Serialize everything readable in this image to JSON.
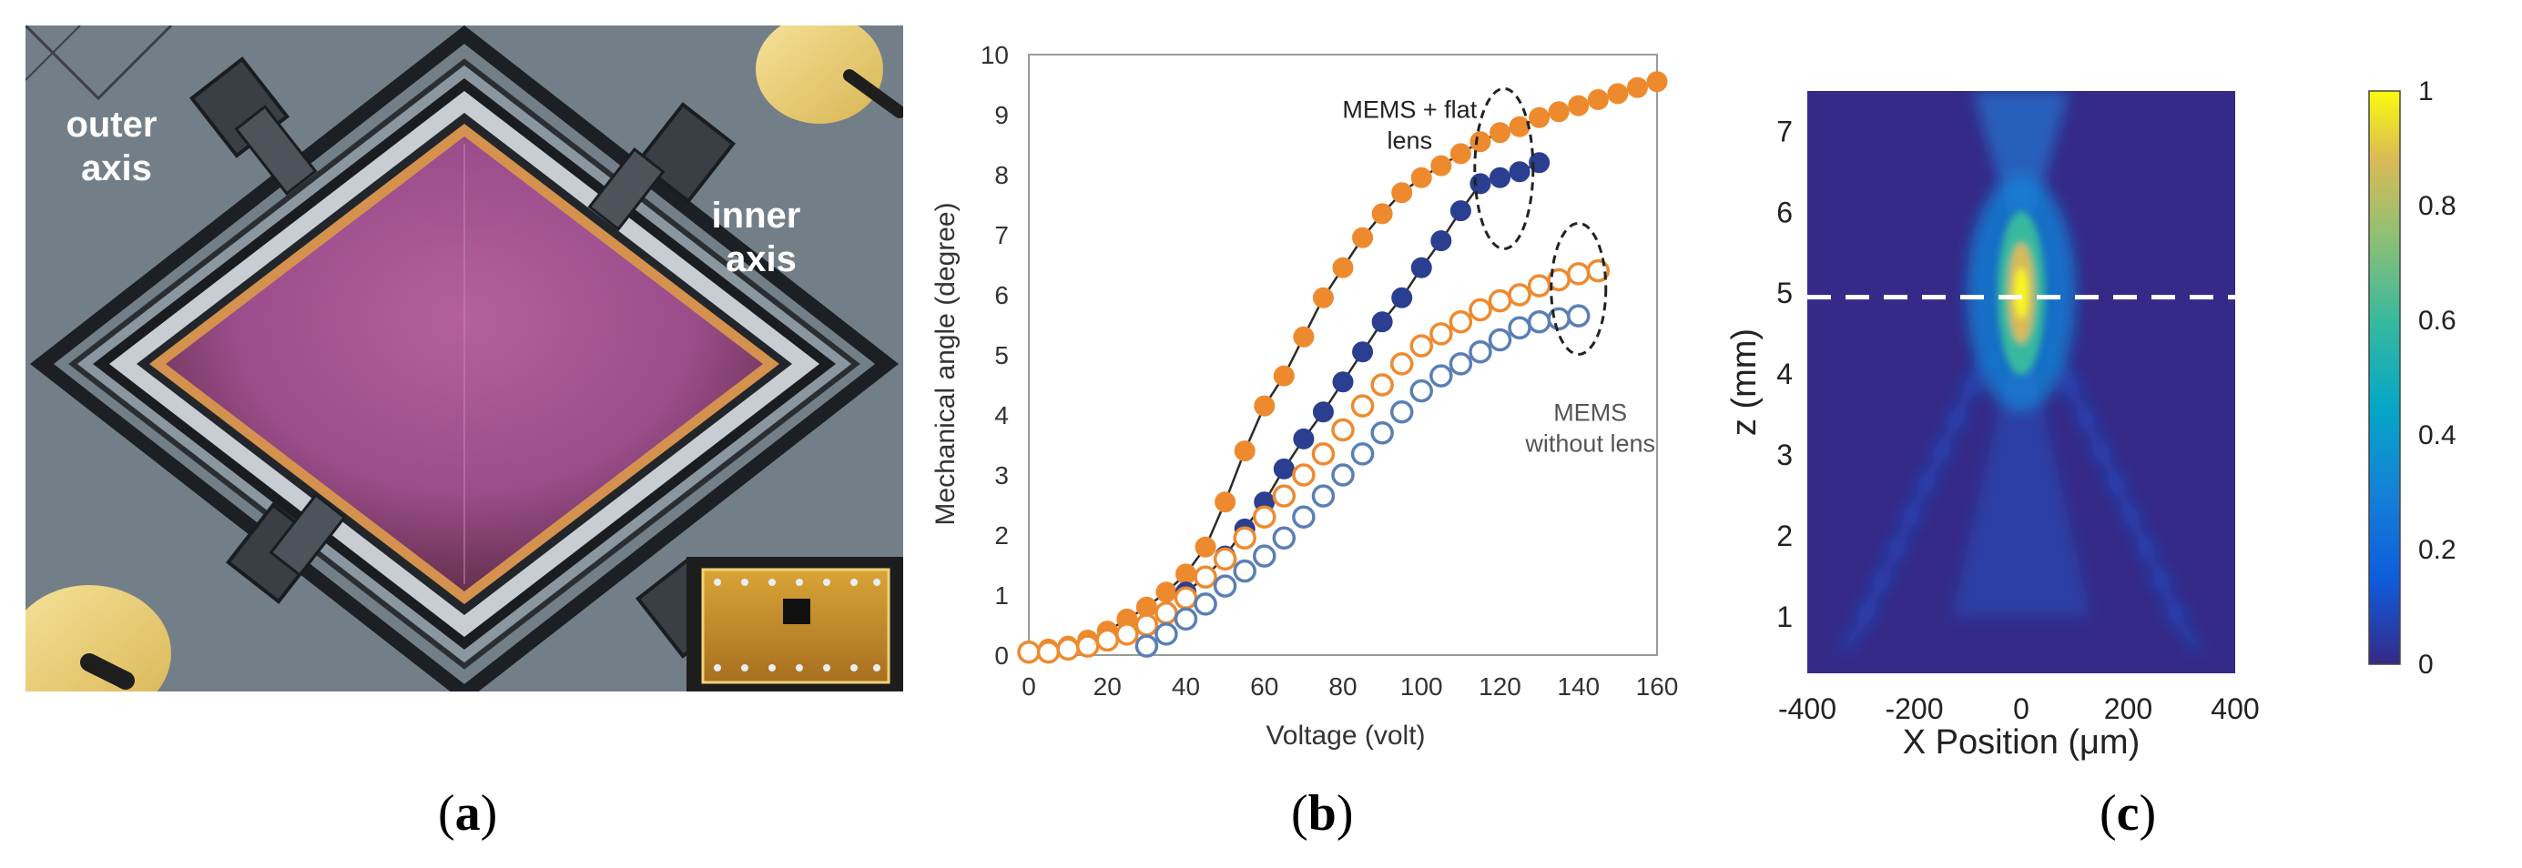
{
  "figure": {
    "panel_a": {
      "label_outer": [
        "outer",
        "axis"
      ],
      "label_inner": [
        "inner",
        "axis"
      ]
    },
    "captions": {
      "a": "a",
      "b": "b",
      "c": "c"
    }
  },
  "chart_data": [
    {
      "type": "scatter",
      "title": "",
      "xlabel": "Voltage (volt)",
      "ylabel": "Mechanical angle (degree)",
      "xlim": [
        0,
        160
      ],
      "ylim": [
        0,
        10
      ],
      "xticks": [
        0,
        20,
        40,
        60,
        80,
        100,
        120,
        140,
        160
      ],
      "yticks": [
        0,
        1,
        2,
        3,
        4,
        5,
        6,
        7,
        8,
        9,
        10
      ],
      "annotations": [
        {
          "text": [
            "MEMS + flat",
            "lens"
          ],
          "color": "#222222"
        },
        {
          "text": [
            "MEMS",
            "without lens"
          ],
          "color": "#555555"
        }
      ],
      "series": [
        {
          "name": "MEMS + flat lens (outer)",
          "color": "#ee8a2e",
          "filled": true,
          "line": true,
          "x": [
            0,
            5,
            10,
            15,
            20,
            25,
            30,
            35,
            40,
            45,
            50,
            55,
            60,
            65,
            70,
            75,
            80,
            85,
            90,
            95,
            100,
            105,
            110,
            115,
            120,
            125,
            130,
            135,
            140,
            145,
            150,
            155,
            160
          ],
          "y": [
            0.05,
            0.1,
            0.15,
            0.25,
            0.4,
            0.6,
            0.8,
            1.05,
            1.35,
            1.8,
            2.55,
            3.4,
            4.15,
            4.65,
            5.3,
            5.95,
            6.45,
            6.95,
            7.35,
            7.7,
            7.95,
            8.15,
            8.35,
            8.55,
            8.7,
            8.8,
            8.95,
            9.05,
            9.15,
            9.25,
            9.35,
            9.45,
            9.55
          ]
        },
        {
          "name": "MEMS + flat lens (inner)",
          "color": "#2b3f91",
          "filled": true,
          "line": true,
          "x": [
            40,
            45,
            50,
            55,
            60,
            65,
            70,
            75,
            80,
            85,
            90,
            95,
            100,
            105,
            110,
            115,
            120,
            125,
            130
          ],
          "y": [
            1.05,
            1.3,
            1.65,
            2.1,
            2.55,
            3.1,
            3.6,
            4.05,
            4.55,
            5.05,
            5.55,
            5.95,
            6.45,
            6.9,
            7.4,
            7.85,
            7.95,
            8.05,
            8.2
          ]
        },
        {
          "name": "MEMS without lens (outer)",
          "color": "#ee8a2e",
          "filled": false,
          "line": false,
          "x": [
            0,
            5,
            10,
            15,
            20,
            25,
            30,
            35,
            40,
            45,
            50,
            55,
            60,
            65,
            70,
            75,
            80,
            85,
            90,
            95,
            100,
            105,
            110,
            115,
            120,
            125,
            130,
            135,
            140,
            145
          ],
          "y": [
            0.05,
            0.05,
            0.1,
            0.15,
            0.25,
            0.35,
            0.5,
            0.7,
            0.95,
            1.3,
            1.6,
            1.95,
            2.3,
            2.65,
            3.0,
            3.35,
            3.75,
            4.15,
            4.5,
            4.85,
            5.15,
            5.35,
            5.55,
            5.75,
            5.9,
            6.0,
            6.15,
            6.25,
            6.35,
            6.4
          ]
        },
        {
          "name": "MEMS without lens (inner)",
          "color": "#5a7fb5",
          "filled": false,
          "line": false,
          "x": [
            30,
            35,
            40,
            45,
            50,
            55,
            60,
            65,
            70,
            75,
            80,
            85,
            90,
            95,
            100,
            105,
            110,
            115,
            120,
            125,
            130,
            135,
            140
          ],
          "y": [
            0.15,
            0.35,
            0.6,
            0.85,
            1.15,
            1.4,
            1.65,
            1.95,
            2.3,
            2.65,
            3.0,
            3.35,
            3.7,
            4.05,
            4.4,
            4.65,
            4.85,
            5.05,
            5.25,
            5.45,
            5.55,
            5.6,
            5.65
          ]
        }
      ]
    },
    {
      "type": "heatmap",
      "title": "",
      "xlabel": "X Position (μm)",
      "ylabel": "z (mm)",
      "xlim": [
        -400,
        400
      ],
      "ylim": [
        0.3,
        7.5
      ],
      "xticks": [
        -400,
        -200,
        0,
        200,
        400
      ],
      "yticks": [
        1,
        2,
        3,
        4,
        5,
        6,
        7
      ],
      "colorbar": {
        "min": 0,
        "max": 1,
        "ticks": [
          0,
          0.2,
          0.4,
          0.6,
          0.8,
          1
        ]
      },
      "focus_line_z": 4.95,
      "peak": {
        "x": 0,
        "z": 5.0,
        "value": 1
      }
    }
  ]
}
